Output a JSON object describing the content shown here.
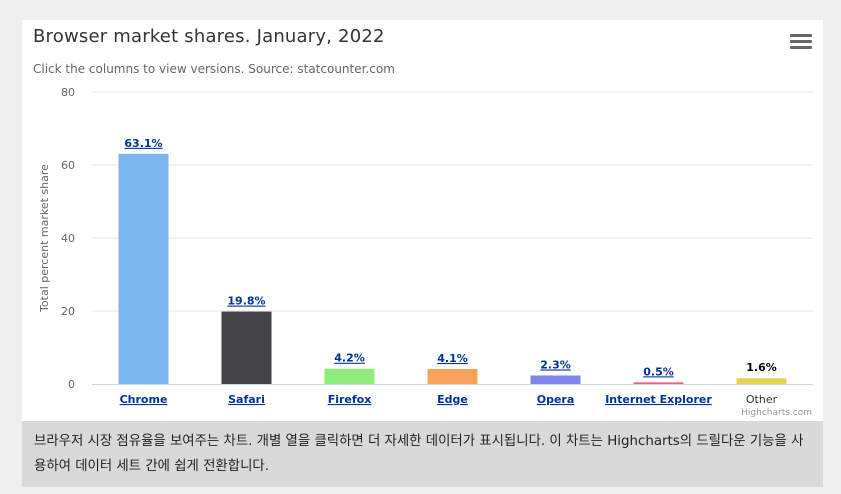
{
  "chart": {
    "title": "Browser market shares. January, 2022",
    "subtitle": "Click the columns to view versions. Source: statcounter.com",
    "credits": "Highcharts.com",
    "menu_icon": "hamburger-menu-icon"
  },
  "caption": {
    "text": "브라우저 시장 점유율을 보여주는 차트. 개별 열을 클릭하면 더 자세한 데이터가 표시됩니다. 이 차트는 Highcharts의 드릴다운 기능을 사용하여 데이터 세트 간에 쉽게 전환합니다."
  },
  "chart_data": {
    "type": "bar",
    "categories": [
      "Chrome",
      "Safari",
      "Firefox",
      "Edge",
      "Opera",
      "Internet Explorer",
      "Other"
    ],
    "values": [
      63.06,
      19.84,
      4.18,
      4.12,
      2.33,
      0.45,
      1.58
    ],
    "data_labels": [
      "63.1%",
      "19.8%",
      "4.2%",
      "4.1%",
      "2.3%",
      "0.5%",
      "1.6%"
    ],
    "drilldown": [
      true,
      true,
      true,
      true,
      true,
      true,
      false
    ],
    "colors": [
      "#7cb5ec",
      "#434348",
      "#90ed7d",
      "#f7a35c",
      "#8085e9",
      "#f15c80",
      "#e4d354"
    ],
    "ylabel": "Total percent market share",
    "xlabel": "",
    "ylim": [
      0,
      80
    ],
    "yticks": [
      0,
      20,
      40,
      60,
      80
    ],
    "grid": true,
    "legend": "none"
  }
}
